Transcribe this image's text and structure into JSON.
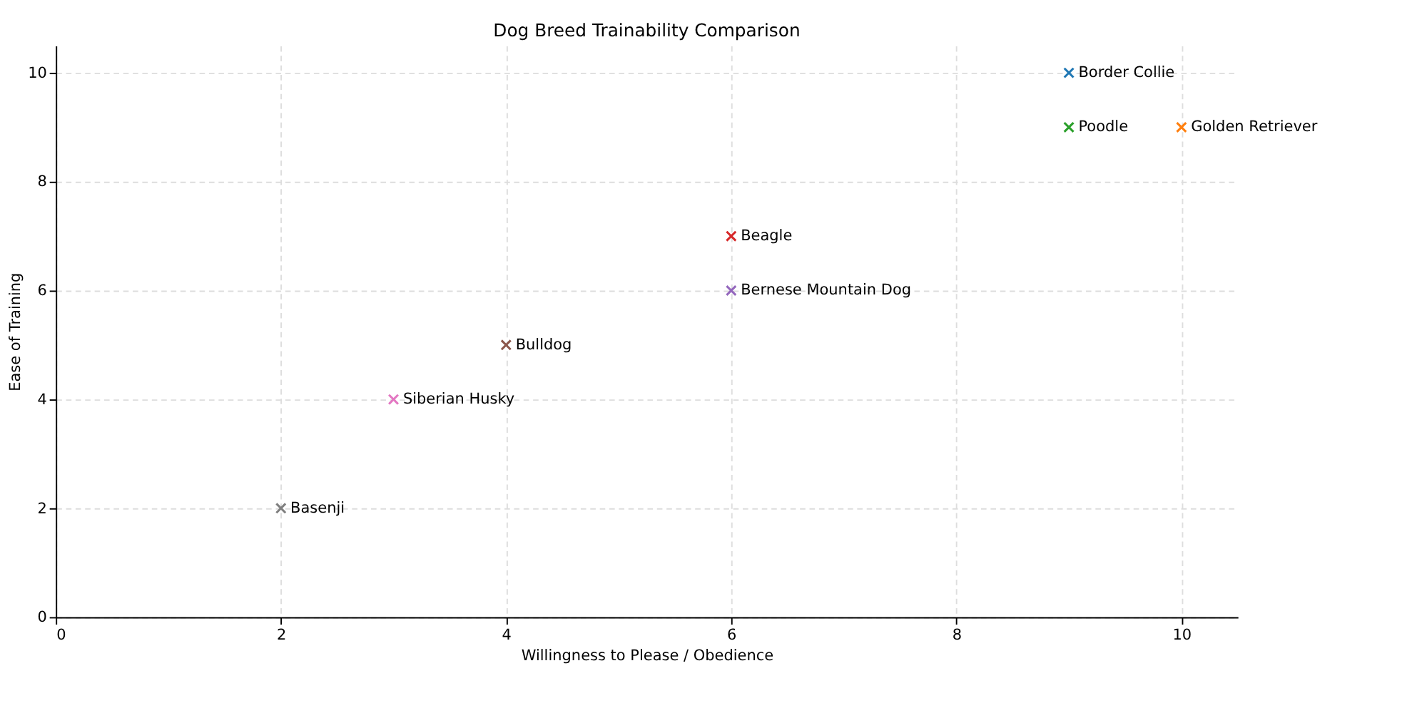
{
  "chart_data": {
    "type": "scatter",
    "title": "Dog Breed Trainability Comparison",
    "xlabel": "Willingness to Please / Obedience",
    "ylabel": "Ease of Training",
    "xlim": [
      0,
      10.5
    ],
    "ylim": [
      0,
      10.5
    ],
    "xticks": [
      0,
      2,
      4,
      6,
      8,
      10
    ],
    "yticks": [
      0,
      2,
      4,
      6,
      8,
      10
    ],
    "grid": true,
    "legend": false,
    "marker": "cross",
    "series": [
      {
        "name": "Border Collie",
        "color": "#1f77b4",
        "x": [
          9
        ],
        "values": [
          10
        ]
      },
      {
        "name": "Golden Retriever",
        "color": "#ff7f0e",
        "x": [
          10
        ],
        "values": [
          9
        ]
      },
      {
        "name": "Poodle",
        "color": "#2ca02c",
        "x": [
          9
        ],
        "values": [
          9
        ]
      },
      {
        "name": "Beagle",
        "color": "#d62728",
        "x": [
          6
        ],
        "values": [
          7
        ]
      },
      {
        "name": "Bernese Mountain Dog",
        "color": "#9467bd",
        "x": [
          6
        ],
        "values": [
          6
        ]
      },
      {
        "name": "Bulldog",
        "color": "#8c564b",
        "x": [
          4
        ],
        "values": [
          5
        ]
      },
      {
        "name": "Siberian Husky",
        "color": "#e377c2",
        "x": [
          3
        ],
        "values": [
          4
        ]
      },
      {
        "name": "Basenji",
        "color": "#7f7f7f",
        "x": [
          2
        ],
        "values": [
          2
        ]
      }
    ]
  }
}
